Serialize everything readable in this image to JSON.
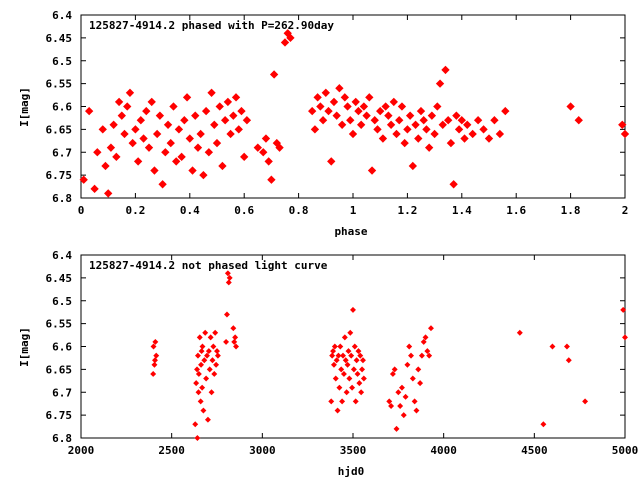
{
  "colors": {
    "points": "#ff0000",
    "axes": "#000000",
    "background": "#ffffff"
  },
  "chart_data": [
    {
      "type": "scatter",
      "title": "125827-4914.2 phased with P=262.90day",
      "xlabel": "phase",
      "ylabel": "I[mag]",
      "xlim": [
        0,
        2
      ],
      "ylim": [
        6.4,
        6.8
      ],
      "y_inverted": true,
      "grid": false,
      "marker": "filled-diamond",
      "xticks": [
        "0",
        "0.2",
        "0.4",
        "0.6",
        "0.8",
        "1",
        "1.2",
        "1.4",
        "1.6",
        "1.8",
        "2"
      ],
      "yticks": [
        "6.4",
        "6.45",
        "6.5",
        "6.55",
        "6.6",
        "6.65",
        "6.7",
        "6.75",
        "6.8"
      ],
      "x": [
        0.01,
        0.03,
        0.05,
        0.06,
        0.08,
        0.09,
        0.1,
        0.11,
        0.12,
        0.13,
        0.14,
        0.15,
        0.16,
        0.17,
        0.18,
        0.19,
        0.2,
        0.21,
        0.22,
        0.23,
        0.24,
        0.25,
        0.26,
        0.27,
        0.28,
        0.29,
        0.3,
        0.31,
        0.32,
        0.33,
        0.34,
        0.35,
        0.36,
        0.37,
        0.38,
        0.39,
        0.4,
        0.41,
        0.42,
        0.43,
        0.44,
        0.45,
        0.46,
        0.47,
        0.48,
        0.49,
        0.5,
        0.51,
        0.52,
        0.53,
        0.54,
        0.55,
        0.56,
        0.57,
        0.58,
        0.59,
        0.6,
        0.61,
        0.65,
        0.67,
        0.68,
        0.69,
        0.7,
        0.71,
        0.72,
        0.73,
        0.75,
        0.76,
        0.77,
        0.85,
        0.86,
        0.87,
        0.88,
        0.89,
        0.9,
        0.91,
        0.92,
        0.93,
        0.94,
        0.95,
        0.96,
        0.97,
        0.98,
        0.99,
        1.0,
        1.01,
        1.02,
        1.03,
        1.04,
        1.05,
        1.06,
        1.07,
        1.08,
        1.09,
        1.1,
        1.11,
        1.12,
        1.13,
        1.14,
        1.15,
        1.16,
        1.17,
        1.18,
        1.19,
        1.2,
        1.21,
        1.22,
        1.23,
        1.24,
        1.25,
        1.26,
        1.27,
        1.28,
        1.29,
        1.3,
        1.31,
        1.32,
        1.33,
        1.34,
        1.35,
        1.36,
        1.37,
        1.38,
        1.39,
        1.4,
        1.41,
        1.42,
        1.44,
        1.46,
        1.48,
        1.5,
        1.52,
        1.54,
        1.56,
        1.8,
        1.83,
        1.99,
        2.0
      ],
      "y": [
        6.76,
        6.61,
        6.78,
        6.7,
        6.65,
        6.73,
        6.79,
        6.69,
        6.64,
        6.71,
        6.59,
        6.62,
        6.66,
        6.6,
        6.57,
        6.68,
        6.65,
        6.72,
        6.63,
        6.67,
        6.61,
        6.69,
        6.59,
        6.74,
        6.66,
        6.62,
        6.77,
        6.7,
        6.64,
        6.68,
        6.6,
        6.72,
        6.65,
        6.71,
        6.63,
        6.58,
        6.67,
        6.74,
        6.62,
        6.69,
        6.66,
        6.75,
        6.61,
        6.7,
        6.57,
        6.64,
        6.68,
        6.6,
        6.73,
        6.63,
        6.59,
        6.66,
        6.62,
        6.58,
        6.65,
        6.61,
        6.71,
        6.63,
        6.69,
        6.7,
        6.67,
        6.72,
        6.76,
        6.53,
        6.68,
        6.69,
        6.46,
        6.44,
        6.45,
        6.61,
        6.65,
        6.58,
        6.6,
        6.63,
        6.57,
        6.61,
        6.72,
        6.59,
        6.62,
        6.56,
        6.64,
        6.58,
        6.6,
        6.63,
        6.66,
        6.59,
        6.61,
        6.64,
        6.6,
        6.62,
        6.58,
        6.74,
        6.63,
        6.65,
        6.61,
        6.67,
        6.6,
        6.62,
        6.64,
        6.59,
        6.66,
        6.63,
        6.6,
        6.68,
        6.65,
        6.62,
        6.73,
        6.64,
        6.67,
        6.61,
        6.63,
        6.65,
        6.69,
        6.62,
        6.66,
        6.6,
        6.55,
        6.64,
        6.52,
        6.63,
        6.68,
        6.77,
        6.62,
        6.65,
        6.63,
        6.67,
        6.64,
        6.66,
        6.63,
        6.65,
        6.67,
        6.63,
        6.66,
        6.61,
        6.6,
        6.63,
        6.64,
        6.66
      ]
    },
    {
      "type": "scatter",
      "title": "125827-4914.2 not phased light curve",
      "xlabel": "hjd0",
      "ylabel": "I[mag]",
      "xlim": [
        2000,
        5000
      ],
      "ylim": [
        6.4,
        6.8
      ],
      "y_inverted": true,
      "grid": false,
      "marker": "small-diamond",
      "xticks": [
        "2000",
        "2500",
        "3000",
        "3500",
        "4000",
        "4500",
        "5000"
      ],
      "yticks": [
        "6.4",
        "6.45",
        "6.5",
        "6.55",
        "6.6",
        "6.65",
        "6.7",
        "6.75",
        "6.8"
      ],
      "x": [
        2398,
        2400,
        2405,
        2408,
        2410,
        2415,
        2630,
        2635,
        2640,
        2642,
        2645,
        2648,
        2650,
        2655,
        2660,
        2662,
        2665,
        2668,
        2670,
        2675,
        2680,
        2685,
        2690,
        2695,
        2700,
        2705,
        2710,
        2715,
        2720,
        2725,
        2730,
        2735,
        2740,
        2745,
        2750,
        2755,
        2800,
        2805,
        2810,
        2815,
        2820,
        2840,
        2845,
        2850,
        2855,
        3380,
        3385,
        3390,
        3395,
        3400,
        3405,
        3410,
        3415,
        3420,
        3425,
        3430,
        3435,
        3440,
        3445,
        3450,
        3455,
        3460,
        3465,
        3470,
        3475,
        3480,
        3485,
        3490,
        3495,
        3500,
        3505,
        3510,
        3515,
        3520,
        3525,
        3530,
        3535,
        3540,
        3545,
        3550,
        3555,
        3560,
        3700,
        3710,
        3720,
        3730,
        3740,
        3750,
        3760,
        3770,
        3780,
        3790,
        3800,
        3810,
        3820,
        3830,
        3840,
        3850,
        3860,
        3870,
        3880,
        3890,
        3900,
        3910,
        3920,
        3930,
        4420,
        4550,
        4600,
        4680,
        4690,
        4780,
        4990,
        5000
      ],
      "y": [
        6.66,
        6.6,
        6.64,
        6.63,
        6.59,
        6.62,
        6.77,
        6.68,
        6.65,
        6.8,
        6.62,
        6.7,
        6.66,
        6.58,
        6.72,
        6.64,
        6.61,
        6.69,
        6.6,
        6.74,
        6.63,
        6.57,
        6.67,
        6.62,
        6.76,
        6.61,
        6.65,
        6.58,
        6.7,
        6.63,
        6.6,
        6.66,
        6.57,
        6.64,
        6.61,
        6.62,
        6.59,
        6.53,
        6.44,
        6.46,
        6.45,
        6.56,
        6.59,
        6.58,
        6.6,
        6.72,
        6.62,
        6.61,
        6.64,
        6.6,
        6.67,
        6.63,
        6.74,
        6.62,
        6.69,
        6.6,
        6.65,
        6.72,
        6.62,
        6.66,
        6.58,
        6.63,
        6.7,
        6.64,
        6.61,
        6.67,
        6.57,
        6.62,
        6.69,
        6.52,
        6.65,
        6.6,
        6.72,
        6.63,
        6.66,
        6.61,
        6.68,
        6.62,
        6.7,
        6.65,
        6.63,
        6.67,
        6.72,
        6.73,
        6.66,
        6.65,
        6.78,
        6.7,
        6.73,
        6.69,
        6.75,
        6.71,
        6.64,
        6.6,
        6.62,
        6.67,
        6.72,
        6.74,
        6.65,
        6.68,
        6.62,
        6.59,
        6.58,
        6.61,
        6.62,
        6.56,
        6.57,
        6.77,
        6.6,
        6.6,
        6.63,
        6.72,
        6.52,
        6.58
      ]
    }
  ]
}
